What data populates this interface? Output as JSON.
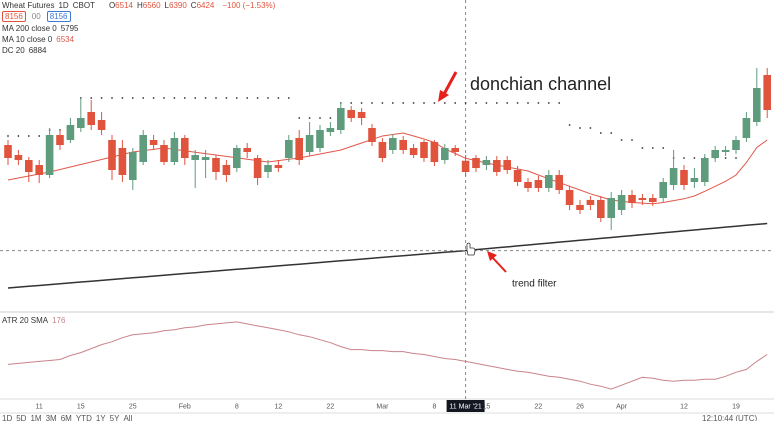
{
  "header": {
    "symbol": "Wheat Futures",
    "interval": "1D",
    "exchange": "CBOT",
    "ohlc_letters": [
      "O",
      "H",
      "L",
      "C"
    ],
    "change": "−100 (−1.53%)",
    "buttons": [
      "8156",
      "00",
      "8156"
    ],
    "ranges": [
      "1D",
      "5D",
      "1M",
      "3M",
      "6M",
      "YTD",
      "1Y",
      "5Y",
      "All"
    ],
    "clock": "12:10:44 (UTC)"
  },
  "chart_data": [
    {
      "type": "candlestick",
      "categories": [
        null,
        null,
        null,
        "11",
        null,
        null,
        null,
        "15",
        null,
        null,
        null,
        null,
        "25",
        null,
        null,
        null,
        null,
        "Feb",
        null,
        null,
        null,
        null,
        "8",
        null,
        null,
        null,
        "12",
        null,
        null,
        null,
        null,
        "22",
        null,
        null,
        null,
        null,
        "Mar",
        null,
        null,
        null,
        null,
        "8",
        null,
        null,
        "11 Mar '21",
        null,
        "15",
        null,
        null,
        null,
        null,
        "22",
        null,
        null,
        null,
        "26",
        null,
        null,
        null,
        "Apr",
        null,
        null,
        null,
        null,
        null,
        "12",
        null,
        null,
        null,
        null,
        "19",
        null,
        null,
        null
      ],
      "open": [
        6640,
        6560,
        6520,
        6480,
        6400,
        6720,
        6680,
        6776,
        6904,
        6840,
        6680,
        6616,
        6360,
        6504,
        6680,
        6640,
        6504,
        6696,
        6520,
        6520,
        6536,
        6480,
        6456,
        6616,
        6536,
        6424,
        6480,
        6536,
        6696,
        6584,
        6616,
        6744,
        6760,
        6920,
        6904,
        6776,
        6664,
        6600,
        6680,
        6616,
        6664,
        6664,
        6520,
        6616,
        6514,
        6536,
        6480,
        6520,
        6520,
        6440,
        6344,
        6360,
        6296,
        6400,
        6280,
        6160,
        6200,
        6200,
        6056,
        6120,
        6240,
        6216,
        6216,
        6216,
        6320,
        6440,
        6344,
        6344,
        6536,
        6584,
        6600,
        6696,
        6824,
        7200
      ],
      "high": [
        6680,
        6600,
        6544,
        6520,
        6776,
        6760,
        6856,
        7016,
        7000,
        6904,
        6720,
        6680,
        6616,
        6760,
        6720,
        6680,
        6744,
        6720,
        6600,
        6600,
        6560,
        6520,
        6640,
        6656,
        6560,
        6520,
        6520,
        6720,
        6760,
        6824,
        6800,
        6824,
        6984,
        6952,
        6936,
        6808,
        6696,
        6728,
        6712,
        6648,
        6680,
        6680,
        6648,
        6640,
        6560,
        6560,
        6552,
        6552,
        6552,
        6472,
        6376,
        6392,
        6440,
        6440,
        6312,
        6200,
        6232,
        6232,
        6264,
        6280,
        6280,
        6248,
        6248,
        6376,
        6600,
        6480,
        6456,
        6568,
        6632,
        6632,
        6712,
        6904,
        7256,
        7256
      ],
      "low": [
        6480,
        6480,
        6344,
        6336,
        6376,
        6600,
        6656,
        6744,
        6760,
        6720,
        6360,
        6344,
        6280,
        6480,
        6600,
        6480,
        6480,
        6480,
        6296,
        6376,
        6360,
        6344,
        6424,
        6536,
        6320,
        6376,
        6424,
        6504,
        6480,
        6552,
        6584,
        6712,
        6728,
        6824,
        6800,
        6632,
        6504,
        6568,
        6568,
        6536,
        6504,
        6472,
        6488,
        6552,
        6390,
        6424,
        6440,
        6392,
        6408,
        6312,
        6264,
        6264,
        6264,
        6248,
        6120,
        6088,
        6120,
        6024,
        5960,
        6080,
        6136,
        6160,
        6152,
        6184,
        6280,
        6280,
        6296,
        6312,
        6504,
        6552,
        6568,
        6664,
        6792,
        6856
      ],
      "close": [
        6536,
        6520,
        6424,
        6400,
        6720,
        6640,
        6800,
        6856,
        6800,
        6760,
        6440,
        6400,
        6584,
        6720,
        6640,
        6504,
        6696,
        6536,
        6560,
        6544,
        6424,
        6400,
        6616,
        6584,
        6376,
        6480,
        6456,
        6680,
        6520,
        6720,
        6760,
        6776,
        6936,
        6856,
        6856,
        6664,
        6536,
        6696,
        6600,
        6560,
        6536,
        6504,
        6616,
        6584,
        6424,
        6456,
        6520,
        6424,
        6440,
        6344,
        6296,
        6296,
        6400,
        6280,
        6160,
        6120,
        6160,
        6056,
        6216,
        6240,
        6176,
        6200,
        6184,
        6344,
        6456,
        6320,
        6376,
        6536,
        6600,
        6600,
        6680,
        6856,
        7096,
        6920
      ],
      "up_color": "#5f9b7d",
      "down_color": "#e0533d",
      "ylim": [
        5320,
        7800
      ],
      "crosshair_index": 44,
      "series": [
        {
          "name": "MA 200 close 0",
          "color": "#333333",
          "style": "line",
          "values": [
            5496,
            5503,
            5510,
            5516,
            5523,
            5530,
            5537,
            5544,
            5550,
            5557,
            5564,
            5571,
            5578,
            5584,
            5591,
            5598,
            5605,
            5612,
            5618,
            5625,
            5632,
            5639,
            5646,
            5652,
            5659,
            5666,
            5673,
            5680,
            5686,
            5693,
            5700,
            5707,
            5714,
            5720,
            5727,
            5734,
            5741,
            5748,
            5754,
            5761,
            5768,
            5775,
            5782,
            5788,
            5795,
            5803,
            5810,
            5818,
            5825,
            5833,
            5840,
            5848,
            5855,
            5863,
            5870,
            5878,
            5885,
            5893,
            5900,
            5908,
            5915,
            5923,
            5930,
            5938,
            5945,
            5953,
            5960,
            5968,
            5975,
            5983,
            5990,
            5998,
            6005,
            6012
          ]
        },
        {
          "name": "MA 10 close 0",
          "color": "#e0584b",
          "style": "line",
          "values": [
            6360,
            6376,
            6392,
            6408,
            6424,
            6444,
            6464,
            6484,
            6504,
            6524,
            6544,
            6564,
            6584,
            6595,
            6605,
            6616,
            6605,
            6594,
            6582,
            6571,
            6560,
            6549,
            6538,
            6526,
            6515,
            6504,
            6515,
            6526,
            6536,
            6552,
            6568,
            6584,
            6600,
            6628,
            6656,
            6684,
            6712,
            6724,
            6736,
            6712,
            6688,
            6660,
            6610,
            6572,
            6534,
            6515,
            6496,
            6480,
            6464,
            6448,
            6432,
            6400,
            6370,
            6340,
            6310,
            6280,
            6250,
            6225,
            6200,
            6190,
            6180,
            6175,
            6170,
            6180,
            6195,
            6210,
            6232,
            6270,
            6310,
            6350,
            6400,
            6500,
            6620,
            6680
          ]
        },
        {
          "name": "DC 20",
          "color": "#333333",
          "style": "dots",
          "legend_value": 6884,
          "values": [
            6712,
            6712,
            6712,
            6712,
            6760,
            6760,
            6760,
            7016,
            7016,
            7016,
            7016,
            7016,
            7016,
            7016,
            7016,
            7016,
            7016,
            7016,
            7016,
            7016,
            7016,
            7016,
            7016,
            7016,
            7016,
            7016,
            7016,
            7016,
            6856,
            6856,
            6856,
            6856,
            6976,
            6976,
            6976,
            6976,
            6976,
            6976,
            6976,
            6976,
            6976,
            6976,
            6976,
            6976,
            6976,
            6976,
            6976,
            6976,
            6976,
            6976,
            6976,
            6976,
            6976,
            6976,
            6800,
            6776,
            6776,
            6736,
            6736,
            6680,
            6680,
            6616,
            6616,
            6616,
            6536,
            6536,
            6536,
            6536,
            6536,
            6536,
            6536,
            null,
            null,
            null
          ]
        }
      ],
      "annotations": [
        "donchian channel",
        "trend filter"
      ]
    },
    {
      "type": "line",
      "series": [
        {
          "name": "ATR 20 SMA",
          "color": "#c9838a",
          "values": [
            173,
            174,
            175,
            176,
            177,
            178,
            182,
            185,
            189,
            193,
            196,
            200,
            203,
            204,
            205,
            207,
            208,
            210,
            211,
            213,
            214,
            215,
            216,
            214,
            212,
            210,
            208,
            206,
            203,
            201,
            198,
            195,
            191,
            188,
            188,
            187,
            187,
            186,
            186,
            184,
            183,
            181,
            179,
            178,
            176,
            174,
            172,
            170,
            168,
            166,
            165,
            163,
            161,
            160,
            158,
            156,
            153,
            151,
            148,
            152,
            156,
            160,
            159,
            157,
            156,
            157,
            157,
            158,
            158,
            161,
            165,
            168,
            176,
            183
          ]
        }
      ],
      "ylim": [
        138,
        223
      ]
    }
  ]
}
